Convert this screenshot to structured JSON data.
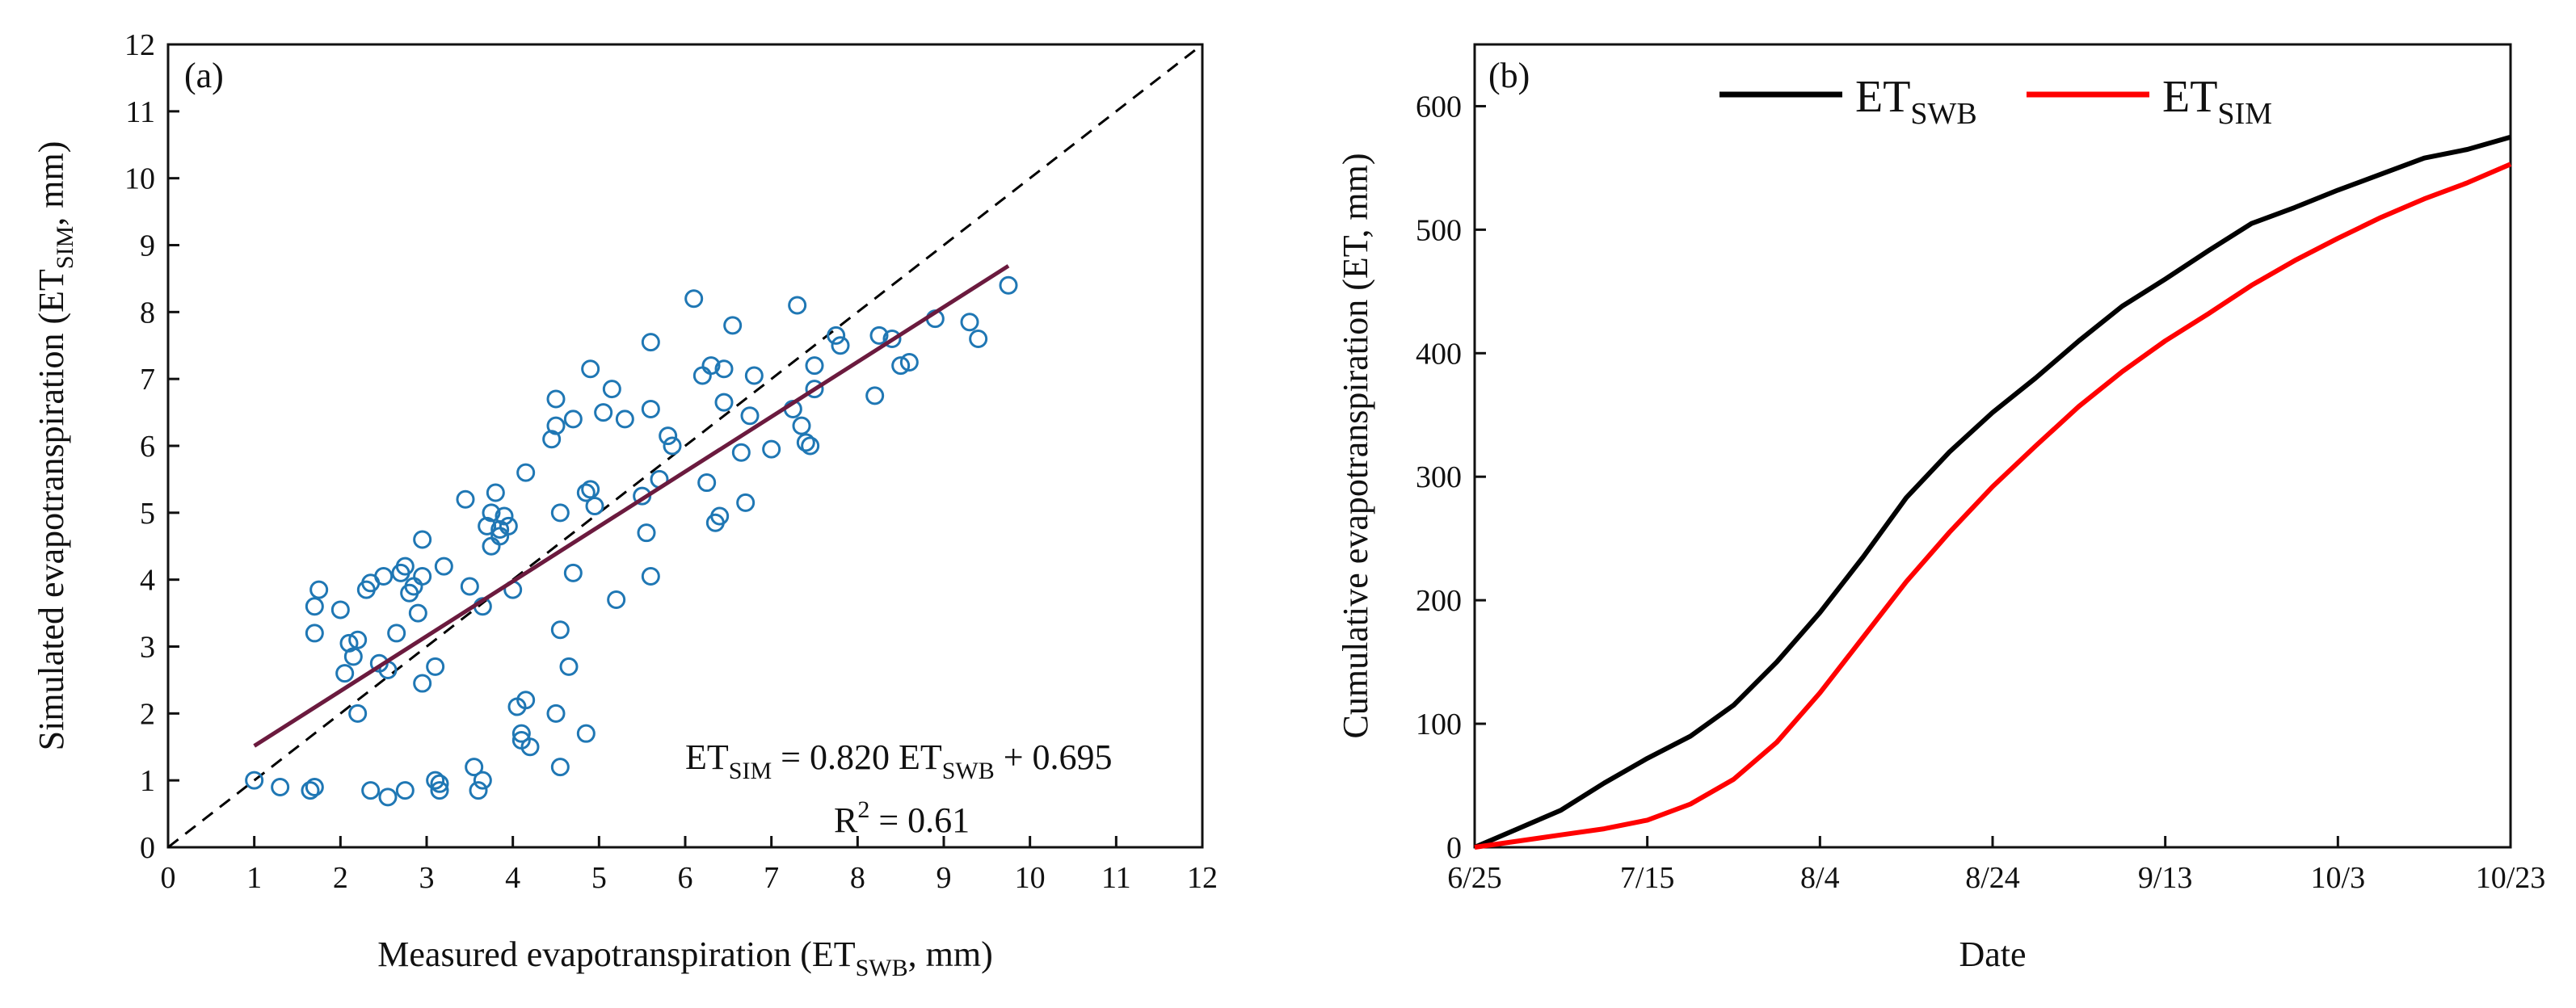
{
  "colors": {
    "scatter_point": "#1f77b4",
    "regression_line": "#6b1a3e",
    "reference_line": "#000000",
    "et_swb": "#000000",
    "et_sim": "#ff0000"
  },
  "chart_data": [
    {
      "type": "scatter",
      "panel_label": "(a)",
      "xlabel": {
        "main": "Measured evapotranspiration (ET",
        "sub": "SWB",
        "tail": ", mm)"
      },
      "ylabel": {
        "main": "Simulated evapotranspiration (ET",
        "sub": "SIM",
        "tail": ", mm)"
      },
      "xlim": [
        0,
        12
      ],
      "ylim": [
        0,
        12
      ],
      "xticks": [
        0,
        1,
        2,
        3,
        4,
        5,
        6,
        7,
        8,
        9,
        10,
        11,
        12
      ],
      "yticks": [
        0,
        1,
        2,
        3,
        4,
        5,
        6,
        7,
        8,
        9,
        10,
        11,
        12
      ],
      "reference_line": {
        "style": "dashed",
        "x": [
          0,
          12
        ],
        "y": [
          0,
          12
        ]
      },
      "regression": {
        "slope": 0.82,
        "intercept": 0.695,
        "x_range": [
          1.0,
          9.75
        ]
      },
      "equation": {
        "lhs": "ET",
        "lhs_sub": "SIM",
        "mid": " = 0.820 ET",
        "mid_sub": "SWB",
        "rhs": " + 0.695"
      },
      "r2": {
        "lhs": "R",
        "sup": "2",
        "rhs": " = 0.61"
      },
      "points": [
        [
          1.0,
          1.0
        ],
        [
          1.3,
          0.9
        ],
        [
          1.65,
          0.85
        ],
        [
          1.7,
          0.9
        ],
        [
          1.7,
          3.2
        ],
        [
          1.7,
          3.6
        ],
        [
          1.75,
          3.85
        ],
        [
          2.0,
          3.55
        ],
        [
          2.05,
          2.6
        ],
        [
          2.1,
          3.05
        ],
        [
          2.15,
          2.85
        ],
        [
          2.2,
          3.1
        ],
        [
          2.2,
          2.0
        ],
        [
          2.3,
          3.85
        ],
        [
          2.35,
          3.95
        ],
        [
          2.35,
          0.85
        ],
        [
          2.45,
          2.75
        ],
        [
          2.5,
          4.05
        ],
        [
          2.55,
          0.75
        ],
        [
          2.55,
          2.65
        ],
        [
          2.65,
          3.2
        ],
        [
          2.7,
          4.1
        ],
        [
          2.75,
          4.2
        ],
        [
          2.75,
          0.85
        ],
        [
          2.8,
          3.8
        ],
        [
          2.85,
          3.9
        ],
        [
          2.9,
          3.5
        ],
        [
          2.95,
          4.6
        ],
        [
          2.95,
          2.45
        ],
        [
          2.95,
          4.05
        ],
        [
          3.1,
          1.0
        ],
        [
          3.1,
          2.7
        ],
        [
          3.15,
          0.85
        ],
        [
          3.15,
          0.95
        ],
        [
          3.2,
          4.2
        ],
        [
          3.45,
          5.2
        ],
        [
          3.5,
          3.9
        ],
        [
          3.55,
          1.2
        ],
        [
          3.6,
          0.85
        ],
        [
          3.65,
          1.0
        ],
        [
          3.65,
          3.6
        ],
        [
          3.7,
          4.8
        ],
        [
          3.75,
          4.5
        ],
        [
          3.75,
          5.0
        ],
        [
          3.8,
          5.3
        ],
        [
          3.85,
          4.65
        ],
        [
          3.85,
          4.75
        ],
        [
          3.9,
          4.95
        ],
        [
          3.95,
          4.8
        ],
        [
          4.0,
          3.85
        ],
        [
          4.05,
          2.1
        ],
        [
          4.1,
          1.7
        ],
        [
          4.1,
          1.6
        ],
        [
          4.15,
          2.2
        ],
        [
          4.15,
          5.6
        ],
        [
          4.2,
          1.5
        ],
        [
          4.45,
          6.1
        ],
        [
          4.5,
          2.0
        ],
        [
          4.5,
          6.3
        ],
        [
          4.5,
          6.7
        ],
        [
          4.55,
          1.2
        ],
        [
          4.55,
          5.0
        ],
        [
          4.55,
          3.25
        ],
        [
          4.65,
          2.7
        ],
        [
          4.7,
          6.4
        ],
        [
          4.7,
          4.1
        ],
        [
          4.85,
          5.3
        ],
        [
          4.85,
          1.7
        ],
        [
          4.9,
          5.35
        ],
        [
          4.9,
          7.15
        ],
        [
          4.95,
          5.1
        ],
        [
          5.05,
          6.5
        ],
        [
          5.15,
          6.85
        ],
        [
          5.2,
          3.7
        ],
        [
          5.3,
          6.4
        ],
        [
          5.5,
          5.25
        ],
        [
          5.55,
          4.7
        ],
        [
          5.6,
          4.05
        ],
        [
          5.6,
          7.55
        ],
        [
          5.6,
          6.55
        ],
        [
          5.7,
          5.5
        ],
        [
          5.8,
          6.15
        ],
        [
          5.85,
          6.0
        ],
        [
          6.1,
          8.2
        ],
        [
          6.2,
          7.05
        ],
        [
          6.25,
          5.45
        ],
        [
          6.3,
          7.2
        ],
        [
          6.35,
          4.85
        ],
        [
          6.4,
          4.95
        ],
        [
          6.45,
          7.15
        ],
        [
          6.45,
          6.65
        ],
        [
          6.55,
          7.8
        ],
        [
          6.65,
          5.9
        ],
        [
          6.7,
          5.15
        ],
        [
          6.75,
          6.45
        ],
        [
          6.8,
          7.05
        ],
        [
          7.0,
          5.95
        ],
        [
          7.25,
          6.55
        ],
        [
          7.3,
          8.1
        ],
        [
          7.35,
          6.3
        ],
        [
          7.4,
          6.05
        ],
        [
          7.45,
          6.0
        ],
        [
          7.5,
          6.85
        ],
        [
          7.5,
          7.2
        ],
        [
          7.75,
          7.65
        ],
        [
          7.8,
          7.5
        ],
        [
          8.2,
          6.75
        ],
        [
          8.25,
          7.65
        ],
        [
          8.4,
          7.6
        ],
        [
          8.5,
          7.2
        ],
        [
          8.6,
          7.25
        ],
        [
          8.9,
          7.9
        ],
        [
          9.3,
          7.85
        ],
        [
          9.4,
          7.6
        ],
        [
          9.75,
          8.4
        ]
      ]
    },
    {
      "type": "line",
      "panel_label": "(b)",
      "xlabel": "Date",
      "ylabel": "Cumulative evapotranspiration (ET, mm)",
      "x_unit": "days since 6/25",
      "xlim": [
        0,
        120
      ],
      "ylim": [
        0,
        650
      ],
      "xticks": [
        {
          "value": 0,
          "label": "6/25"
        },
        {
          "value": 20,
          "label": "7/15"
        },
        {
          "value": 40,
          "label": "8/4"
        },
        {
          "value": 60,
          "label": "8/24"
        },
        {
          "value": 80,
          "label": "9/13"
        },
        {
          "value": 100,
          "label": "10/3"
        },
        {
          "value": 120,
          "label": "10/23"
        }
      ],
      "yticks": [
        0,
        100,
        200,
        300,
        400,
        500,
        600
      ],
      "series": [
        {
          "name": "ET",
          "name_sub": "SWB",
          "color_key": "et_swb",
          "x": [
            0,
            5,
            10,
            15,
            20,
            25,
            30,
            35,
            40,
            45,
            50,
            55,
            60,
            65,
            70,
            75,
            80,
            85,
            90,
            95,
            100,
            105,
            110,
            115,
            120
          ],
          "values": [
            0,
            15,
            30,
            52,
            72,
            90,
            115,
            150,
            190,
            235,
            283,
            320,
            352,
            380,
            410,
            438,
            460,
            483,
            505,
            518,
            532,
            545,
            558,
            565,
            575
          ]
        },
        {
          "name": "ET",
          "name_sub": "SIM",
          "color_key": "et_sim",
          "x": [
            0,
            5,
            10,
            15,
            20,
            25,
            30,
            35,
            40,
            45,
            50,
            55,
            60,
            65,
            70,
            75,
            80,
            85,
            90,
            95,
            100,
            105,
            110,
            115,
            120
          ],
          "values": [
            0,
            5,
            10,
            15,
            22,
            35,
            55,
            85,
            125,
            170,
            215,
            255,
            292,
            325,
            357,
            385,
            410,
            432,
            455,
            475,
            493,
            510,
            525,
            538,
            553
          ]
        }
      ],
      "legend_position": "top"
    }
  ]
}
